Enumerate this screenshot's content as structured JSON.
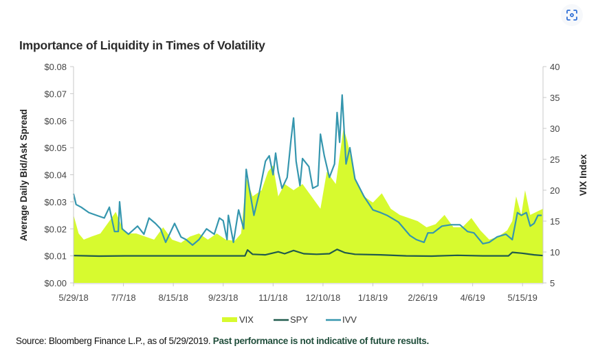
{
  "title": "Importance of Liquidity in Times of Volatility",
  "source": {
    "text": "Source: Bloomberg Finance L.P., as of 5/29/2019.",
    "note": "Past performance is not indicative of future results."
  },
  "scan_icon": "scan-focus-icon",
  "chart_data": {
    "type": "line",
    "title": "Importance of Liquidity in Times of Volatility",
    "xlabel": "",
    "ylabel": "Average Daily Bid/Ask Spread",
    "y2label": "VIX Index",
    "x_unit": "days since 5/29/18",
    "xlim": [
      0,
      367
    ],
    "ylim": [
      0,
      0.08
    ],
    "y2lim": [
      5,
      40
    ],
    "x_ticks": [
      {
        "day": 0,
        "label": "5/29/18"
      },
      {
        "day": 39,
        "label": "7/7/18"
      },
      {
        "day": 78,
        "label": "8/15/18"
      },
      {
        "day": 117,
        "label": "9/23/18"
      },
      {
        "day": 156,
        "label": "11/1/18"
      },
      {
        "day": 195,
        "label": "12/10/18"
      },
      {
        "day": 234,
        "label": "1/18/19"
      },
      {
        "day": 273,
        "label": "2/26/19"
      },
      {
        "day": 312,
        "label": "4/6/19"
      },
      {
        "day": 351,
        "label": "5/15/19"
      }
    ],
    "y_ticks": [
      {
        "value": 0,
        "label": "$0.00"
      },
      {
        "value": 0.01,
        "label": "$0.01"
      },
      {
        "value": 0.02,
        "label": "$0.02"
      },
      {
        "value": 0.03,
        "label": "$0.03"
      },
      {
        "value": 0.04,
        "label": "$0.04"
      },
      {
        "value": 0.05,
        "label": "$0.05"
      },
      {
        "value": 0.06,
        "label": "$0.06"
      },
      {
        "value": 0.07,
        "label": "$0.07"
      },
      {
        "value": 0.08,
        "label": "$0.08"
      }
    ],
    "y2_ticks": [
      {
        "value": 5,
        "label": "5"
      },
      {
        "value": 10,
        "label": "10"
      },
      {
        "value": 15,
        "label": "15"
      },
      {
        "value": 20,
        "label": "20"
      },
      {
        "value": 25,
        "label": "25"
      },
      {
        "value": 30,
        "label": "30"
      },
      {
        "value": 35,
        "label": "35"
      },
      {
        "value": 40,
        "label": "40"
      }
    ],
    "legend": {
      "position": "bottom-center"
    },
    "colors": {
      "VIX": "#d7fa2f",
      "SPY": "#1f5a4c",
      "IVV": "#3596ae"
    },
    "series": [
      {
        "name": "VIX",
        "kind": "area",
        "axis": "right",
        "x": [
          0,
          4,
          8,
          14,
          21,
          28,
          33,
          38,
          42,
          49,
          56,
          63,
          70,
          77,
          84,
          91,
          98,
          105,
          112,
          119,
          126,
          131,
          135,
          140,
          147,
          152,
          156,
          160,
          165,
          172,
          179,
          186,
          193,
          198,
          205,
          211,
          214,
          220,
          227,
          234,
          241,
          248,
          255,
          262,
          269,
          276,
          283,
          290,
          297,
          304,
          311,
          318,
          325,
          332,
          339,
          343,
          346,
          350,
          353,
          357,
          362,
          367
        ],
        "values": [
          16,
          13,
          12,
          12.5,
          13,
          15,
          16.5,
          14,
          13,
          13,
          12.5,
          12,
          14,
          12,
          11.5,
          12.5,
          13,
          12,
          13,
          12,
          11.8,
          13,
          22,
          19,
          20,
          23,
          24,
          19,
          21,
          20,
          21,
          19,
          17,
          23,
          21,
          30,
          28,
          22,
          19,
          18,
          19.5,
          17,
          16,
          15.5,
          15,
          14,
          14.5,
          16,
          14,
          14,
          15.5,
          13.5,
          12,
          12.5,
          13.5,
          15,
          19,
          16,
          20,
          16,
          16.5,
          17
        ]
      },
      {
        "name": "SPY",
        "kind": "line",
        "axis": "left",
        "x": [
          0,
          20,
          40,
          60,
          80,
          100,
          120,
          134,
          136,
          140,
          150,
          160,
          165,
          172,
          180,
          190,
          200,
          206,
          212,
          220,
          240,
          260,
          280,
          300,
          320,
          340,
          343,
          350,
          360,
          367
        ],
        "values": [
          0.0101,
          0.0099,
          0.01,
          0.01,
          0.01,
          0.01,
          0.01,
          0.01,
          0.0122,
          0.0106,
          0.0104,
          0.0115,
          0.0108,
          0.012,
          0.0108,
          0.0106,
          0.0108,
          0.0124,
          0.0112,
          0.0106,
          0.0104,
          0.01,
          0.0099,
          0.0102,
          0.01,
          0.01,
          0.0113,
          0.011,
          0.0104,
          0.0101
        ]
      },
      {
        "name": "IVV",
        "kind": "line",
        "axis": "left",
        "x": [
          0,
          2,
          6,
          12,
          18,
          24,
          28,
          32,
          35,
          36,
          38,
          43,
          50,
          55,
          59,
          64,
          68,
          72,
          75,
          79,
          84,
          88,
          93,
          98,
          104,
          110,
          114,
          117,
          120,
          121,
          125,
          129,
          133,
          135,
          137,
          141,
          145,
          150,
          153,
          156,
          158,
          160,
          163,
          167,
          170,
          172,
          174,
          177,
          179,
          184,
          187,
          191,
          193,
          196,
          200,
          204,
          206,
          208,
          210,
          213,
          216,
          220,
          227,
          234,
          240,
          245,
          254,
          263,
          268,
          274,
          277,
          281,
          288,
          295,
          302,
          308,
          313,
          320,
          325,
          331,
          338,
          343,
          347,
          350,
          354,
          357,
          360,
          363,
          366
        ],
        "values": [
          0.033,
          0.029,
          0.028,
          0.026,
          0.025,
          0.024,
          0.028,
          0.019,
          0.019,
          0.03,
          0.02,
          0.018,
          0.021,
          0.018,
          0.024,
          0.022,
          0.02,
          0.015,
          0.018,
          0.022,
          0.017,
          0.016,
          0.014,
          0.016,
          0.02,
          0.018,
          0.024,
          0.023,
          0.016,
          0.025,
          0.015,
          0.027,
          0.02,
          0.042,
          0.036,
          0.025,
          0.033,
          0.045,
          0.047,
          0.04,
          0.048,
          0.041,
          0.035,
          0.039,
          0.053,
          0.061,
          0.045,
          0.036,
          0.046,
          0.043,
          0.035,
          0.036,
          0.055,
          0.047,
          0.039,
          0.044,
          0.063,
          0.052,
          0.0695,
          0.044,
          0.05,
          0.0385,
          0.032,
          0.027,
          0.026,
          0.025,
          0.0225,
          0.0175,
          0.016,
          0.015,
          0.0185,
          0.0185,
          0.021,
          0.0215,
          0.0215,
          0.019,
          0.0185,
          0.0145,
          0.015,
          0.017,
          0.018,
          0.016,
          0.026,
          0.025,
          0.026,
          0.021,
          0.022,
          0.025,
          0.025
        ]
      }
    ]
  }
}
